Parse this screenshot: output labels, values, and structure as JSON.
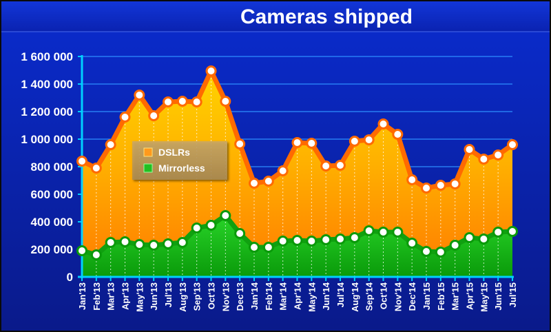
{
  "chart_data": {
    "type": "area",
    "title": "Cameras shipped",
    "xlabel": "",
    "ylabel": "",
    "ylim": [
      0,
      1600000
    ],
    "yticks": [
      0,
      200000,
      400000,
      600000,
      800000,
      1000000,
      1200000,
      1400000,
      1600000
    ],
    "ytick_labels": [
      "0",
      "200 000",
      "400 000",
      "600 000",
      "800 000",
      "1 000 000",
      "1 200 000",
      "1 400 000",
      "1 600 000"
    ],
    "grid": true,
    "legend_position": "upper-left inside plot",
    "categories": [
      "Jan'13",
      "Feb'13",
      "Mar'13",
      "Apr'13",
      "May'13",
      "Jun'13",
      "Jul'13",
      "Aug'13",
      "Sep'13",
      "Oct'13",
      "Nov'13",
      "Dec'13",
      "Jan'14",
      "Feb'14",
      "Mar'14",
      "Apr'14",
      "May'14",
      "Jun'14",
      "Jul'14",
      "Aug'14",
      "Sep'14",
      "Oct'14",
      "Nov'14",
      "Dec'14",
      "Jan'15",
      "Feb'15",
      "Mar'15",
      "Apr'15",
      "May'15",
      "Jun'15",
      "Jul'15"
    ],
    "series": [
      {
        "name": "DSLRs",
        "color": "#ff9a1a",
        "values": [
          840000,
          790000,
          960000,
          1160000,
          1320000,
          1170000,
          1270000,
          1275000,
          1270000,
          1495000,
          1275000,
          965000,
          680000,
          695000,
          770000,
          975000,
          970000,
          805000,
          810000,
          985000,
          995000,
          1110000,
          1035000,
          705000,
          645000,
          665000,
          675000,
          925000,
          855000,
          885000,
          960000
        ]
      },
      {
        "name": "Mirrorless",
        "color": "#20c020",
        "values": [
          190000,
          160000,
          250000,
          255000,
          235000,
          230000,
          240000,
          250000,
          355000,
          375000,
          445000,
          315000,
          215000,
          215000,
          260000,
          265000,
          260000,
          270000,
          275000,
          285000,
          335000,
          325000,
          325000,
          245000,
          185000,
          180000,
          230000,
          285000,
          275000,
          325000,
          330000
        ]
      }
    ]
  }
}
